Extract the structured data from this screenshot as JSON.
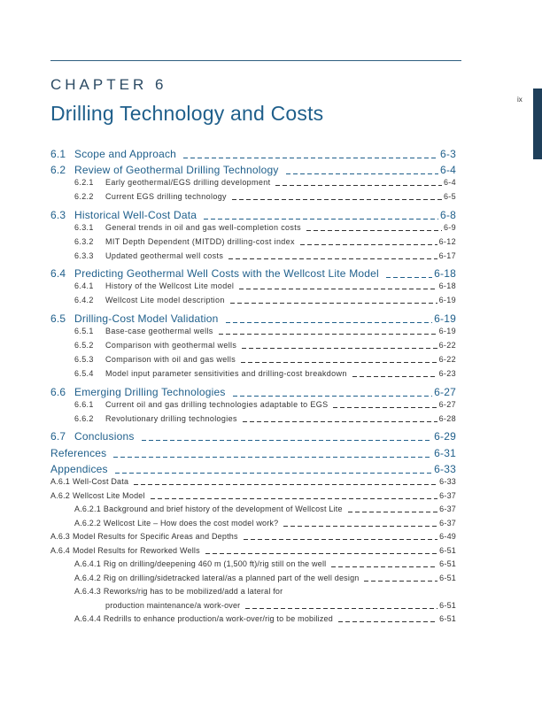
{
  "header": {
    "chapter_label": "CHAPTER 6",
    "title": "Drilling Technology and Costs",
    "page_number": "ix"
  },
  "sections": [
    {
      "number": "6.1",
      "title": "Scope and Approach",
      "page": "6-3",
      "subsections": []
    },
    {
      "number": "6.2",
      "title": "Review of Geothermal Drilling Technology",
      "page": "6-4",
      "subsections": [
        {
          "number": "6.2.1",
          "title": "Early geothermal/EGS drilling development",
          "page": "6-4"
        },
        {
          "number": "6.2.2",
          "title": "Current EGS drilling technology",
          "page": "6-5"
        }
      ]
    },
    {
      "number": "6.3",
      "title": "Historical Well-Cost Data",
      "page": "6-8",
      "subsections": [
        {
          "number": "6.3.1",
          "title": "General trends in oil and gas well-completion costs",
          "page": "6-9"
        },
        {
          "number": "6.3.2",
          "title": "MIT Depth Dependent (MITDD) drilling-cost index",
          "page": "6-12"
        },
        {
          "number": "6.3.3",
          "title": "Updated geothermal well costs",
          "page": "6-17"
        }
      ]
    },
    {
      "number": "6.4",
      "title": "Predicting Geothermal Well Costs with the Wellcost Lite Model",
      "page": "6-18",
      "subsections": [
        {
          "number": "6.4.1",
          "title": "History of the Wellcost Lite model",
          "page": "6-18"
        },
        {
          "number": "6.4.2",
          "title": "Wellcost Lite model description",
          "page": "6-19"
        }
      ]
    },
    {
      "number": "6.5",
      "title": "Drilling-Cost Model Validation",
      "page": "6-19",
      "subsections": [
        {
          "number": "6.5.1",
          "title": "Base-case geothermal wells",
          "page": "6-19"
        },
        {
          "number": "6.5.2",
          "title": "Comparison with geothermal wells",
          "page": "6-22"
        },
        {
          "number": "6.5.3",
          "title": "Comparison with oil and gas wells",
          "page": "6-22"
        },
        {
          "number": "6.5.4",
          "title": "Model input parameter sensitivities and drilling-cost breakdown",
          "page": "6-23"
        }
      ]
    },
    {
      "number": "6.6",
      "title": "Emerging Drilling Technologies",
      "page": "6-27",
      "subsections": [
        {
          "number": "6.6.1",
          "title": "Current oil and gas drilling technologies adaptable to EGS",
          "page": "6-27"
        },
        {
          "number": "6.6.2",
          "title": "Revolutionary drilling technologies",
          "page": "6-28"
        }
      ]
    },
    {
      "number": "6.7",
      "title": "Conclusions",
      "page": "6-29",
      "subsections": []
    }
  ],
  "back_matter": [
    {
      "title": "References",
      "page": "6-31"
    },
    {
      "title": "Appendices",
      "page": "6-33"
    }
  ],
  "appendices": [
    {
      "number": "A.6.1",
      "title": "Well-Cost Data",
      "page": "6-33",
      "subsections": []
    },
    {
      "number": "A.6.2",
      "title": "Wellcost Lite Model",
      "page": "6-37",
      "subsections": [
        {
          "number": "A.6.2.1",
          "title": "Background and brief history of the development of Wellcost Lite",
          "page": "6-37"
        },
        {
          "number": "A.6.2.2",
          "title": "Wellcost Lite – How does the cost model work?",
          "page": "6-37"
        }
      ]
    },
    {
      "number": "A.6.3",
      "title": "Model Results for Specific Areas and Depths",
      "page": "6-49",
      "subsections": []
    },
    {
      "number": "A.6.4",
      "title": "Model Results for Reworked Wells",
      "page": "6-51",
      "subsections": [
        {
          "number": "A.6.4.1",
          "title": "Rig on drilling/deepening 460 m (1,500 ft)/rig still on the well",
          "page": "6-51"
        },
        {
          "number": "A.6.4.2",
          "title": "Rig on drilling/sidetracked lateral/as a planned part of the well design",
          "page": "6-51"
        },
        {
          "number": "A.6.4.3",
          "title": "Reworks/rig has to be mobilized/add a lateral for",
          "continuation": "production maintenance/a work-over",
          "page": "6-51"
        },
        {
          "number": "A.6.4.4",
          "title": "Redrills to enhance production/a work-over/rig to be mobilized",
          "page": "6-51"
        }
      ]
    }
  ]
}
